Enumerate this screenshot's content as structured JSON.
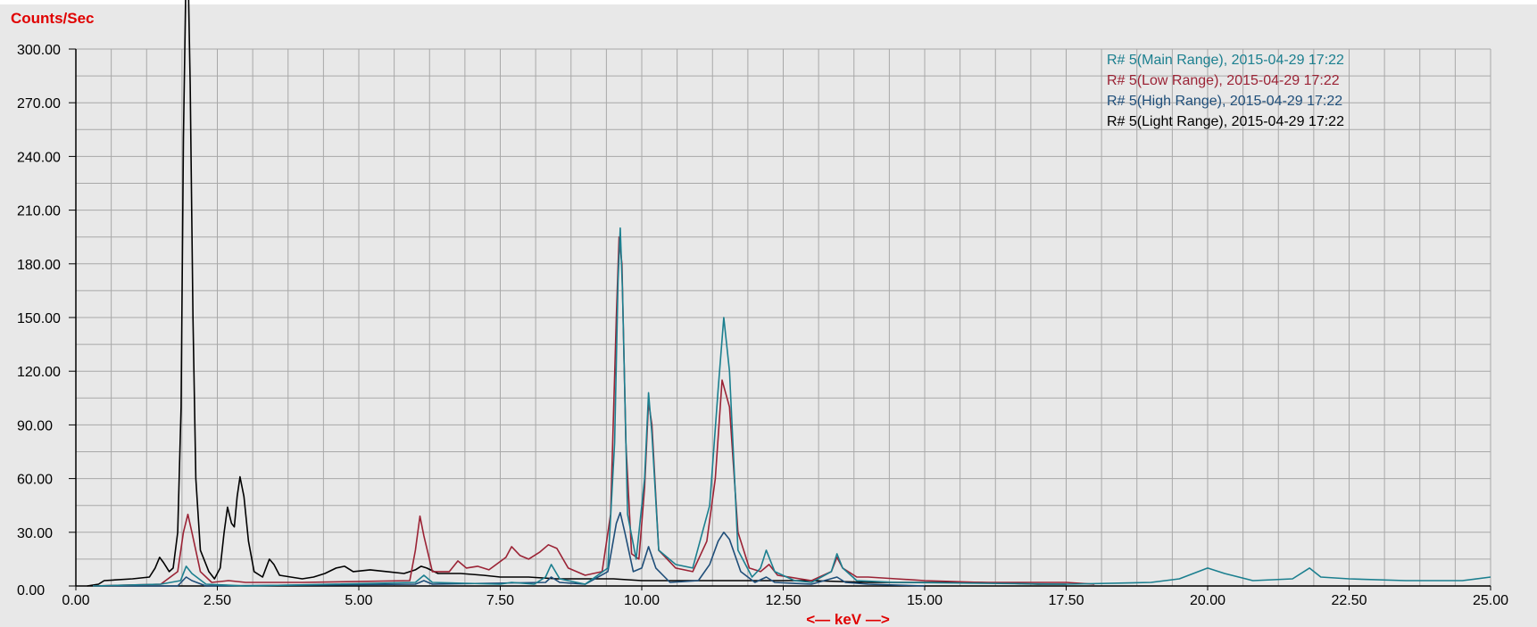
{
  "chart_data": {
    "type": "line",
    "title": "",
    "ylabel": "Counts/Sec",
    "xlabel": "<— keV —>",
    "xlim": [
      0,
      25
    ],
    "ylim": [
      0,
      300
    ],
    "grid": true,
    "legend_position": "top-right",
    "x_ticks": [
      "0.00",
      "2.50",
      "5.00",
      "7.50",
      "10.00",
      "12.50",
      "15.00",
      "17.50",
      "20.00",
      "22.50",
      "25.00"
    ],
    "y_ticks": [
      "0.00",
      "30.00",
      "60.00",
      "90.00",
      "120.00",
      "150.00",
      "180.00",
      "210.00",
      "240.00",
      "270.00",
      "300.00"
    ],
    "series": [
      {
        "name": "R# 5(Main Range), 2015-04-29 17:22",
        "color": "#1b7f8f",
        "points": [
          [
            0.3,
            0
          ],
          [
            1.5,
            1
          ],
          [
            1.85,
            3
          ],
          [
            1.95,
            11
          ],
          [
            2.05,
            7
          ],
          [
            2.3,
            1
          ],
          [
            3.0,
            0
          ],
          [
            6.0,
            2
          ],
          [
            6.15,
            6
          ],
          [
            6.3,
            2
          ],
          [
            7.5,
            1
          ],
          [
            7.7,
            2
          ],
          [
            8.1,
            1
          ],
          [
            8.3,
            5
          ],
          [
            8.4,
            12
          ],
          [
            8.55,
            4
          ],
          [
            9.0,
            1
          ],
          [
            9.4,
            10
          ],
          [
            9.52,
            80
          ],
          [
            9.58,
            170
          ],
          [
            9.62,
            200
          ],
          [
            9.66,
            165
          ],
          [
            9.75,
            40
          ],
          [
            9.9,
            15
          ],
          [
            10.05,
            60
          ],
          [
            10.12,
            108
          ],
          [
            10.18,
            85
          ],
          [
            10.3,
            20
          ],
          [
            10.6,
            12
          ],
          [
            10.9,
            10
          ],
          [
            11.2,
            45
          ],
          [
            11.35,
            110
          ],
          [
            11.45,
            150
          ],
          [
            11.55,
            120
          ],
          [
            11.7,
            20
          ],
          [
            11.95,
            5
          ],
          [
            12.1,
            10
          ],
          [
            12.2,
            20
          ],
          [
            12.35,
            8
          ],
          [
            12.7,
            3
          ],
          [
            13.0,
            2
          ],
          [
            13.35,
            8
          ],
          [
            13.45,
            18
          ],
          [
            13.55,
            10
          ],
          [
            13.8,
            3
          ],
          [
            14.5,
            2
          ],
          [
            17.5,
            1
          ],
          [
            19.0,
            2
          ],
          [
            19.5,
            4
          ],
          [
            20.0,
            10
          ],
          [
            20.3,
            7
          ],
          [
            20.8,
            3
          ],
          [
            21.5,
            4
          ],
          [
            21.8,
            10
          ],
          [
            22.0,
            5
          ],
          [
            22.5,
            4
          ],
          [
            23.5,
            3
          ],
          [
            24.5,
            3
          ],
          [
            25.0,
            5
          ]
        ]
      },
      {
        "name": "R# 5(Low Range), 2015-04-29 17:22",
        "color": "#9b2335",
        "points": [
          [
            0.3,
            0
          ],
          [
            1.5,
            1
          ],
          [
            1.8,
            8
          ],
          [
            1.9,
            30
          ],
          [
            1.98,
            40
          ],
          [
            2.05,
            30
          ],
          [
            2.2,
            8
          ],
          [
            2.4,
            2
          ],
          [
            2.7,
            3
          ],
          [
            3.0,
            2
          ],
          [
            4.0,
            2
          ],
          [
            5.9,
            3
          ],
          [
            6.0,
            20
          ],
          [
            6.08,
            39
          ],
          [
            6.15,
            28
          ],
          [
            6.3,
            8
          ],
          [
            6.6,
            8
          ],
          [
            6.75,
            14
          ],
          [
            6.9,
            10
          ],
          [
            7.1,
            11
          ],
          [
            7.3,
            9
          ],
          [
            7.6,
            16
          ],
          [
            7.7,
            22
          ],
          [
            7.85,
            17
          ],
          [
            8.0,
            15
          ],
          [
            8.2,
            19
          ],
          [
            8.35,
            23
          ],
          [
            8.5,
            21
          ],
          [
            8.7,
            10
          ],
          [
            9.0,
            6
          ],
          [
            9.3,
            8
          ],
          [
            9.45,
            40
          ],
          [
            9.55,
            150
          ],
          [
            9.6,
            195
          ],
          [
            9.65,
            180
          ],
          [
            9.72,
            80
          ],
          [
            9.82,
            18
          ],
          [
            9.95,
            15
          ],
          [
            10.05,
            55
          ],
          [
            10.12,
            103
          ],
          [
            10.18,
            90
          ],
          [
            10.3,
            20
          ],
          [
            10.6,
            10
          ],
          [
            10.9,
            8
          ],
          [
            11.15,
            25
          ],
          [
            11.3,
            60
          ],
          [
            11.42,
            115
          ],
          [
            11.55,
            100
          ],
          [
            11.7,
            30
          ],
          [
            11.9,
            10
          ],
          [
            12.1,
            8
          ],
          [
            12.25,
            12
          ],
          [
            12.4,
            6
          ],
          [
            12.8,
            4
          ],
          [
            13.0,
            3
          ],
          [
            13.35,
            8
          ],
          [
            13.45,
            16
          ],
          [
            13.55,
            10
          ],
          [
            13.8,
            5
          ],
          [
            14.0,
            5
          ],
          [
            14.5,
            4
          ],
          [
            15.0,
            3
          ],
          [
            16.0,
            2
          ],
          [
            17.5,
            2
          ],
          [
            18.0,
            1
          ]
        ]
      },
      {
        "name": "R# 5(High Range), 2015-04-29 17:22",
        "color": "#1f4e79",
        "points": [
          [
            0.3,
            0
          ],
          [
            1.8,
            0
          ],
          [
            1.95,
            5
          ],
          [
            2.05,
            3
          ],
          [
            2.3,
            0
          ],
          [
            6.0,
            1
          ],
          [
            6.15,
            3
          ],
          [
            6.3,
            1
          ],
          [
            8.3,
            2
          ],
          [
            8.4,
            5
          ],
          [
            8.55,
            2
          ],
          [
            9.0,
            1
          ],
          [
            9.4,
            8
          ],
          [
            9.55,
            35
          ],
          [
            9.62,
            41
          ],
          [
            9.7,
            30
          ],
          [
            9.85,
            8
          ],
          [
            10.0,
            10
          ],
          [
            10.12,
            22
          ],
          [
            10.25,
            10
          ],
          [
            10.5,
            2
          ],
          [
            11.0,
            3
          ],
          [
            11.2,
            12
          ],
          [
            11.35,
            25
          ],
          [
            11.45,
            30
          ],
          [
            11.55,
            26
          ],
          [
            11.75,
            8
          ],
          [
            12.0,
            2
          ],
          [
            12.2,
            5
          ],
          [
            12.35,
            2
          ],
          [
            13.0,
            1
          ],
          [
            13.45,
            5
          ],
          [
            13.6,
            2
          ],
          [
            14.0,
            1
          ],
          [
            15.0,
            0
          ]
        ]
      },
      {
        "name": "R# 5(Light Range), 2015-04-29 17:22",
        "color": "#000000",
        "points": [
          [
            0.2,
            0
          ],
          [
            0.4,
            1
          ],
          [
            0.5,
            3
          ],
          [
            1.0,
            4
          ],
          [
            1.3,
            5
          ],
          [
            1.4,
            10
          ],
          [
            1.48,
            16
          ],
          [
            1.55,
            13
          ],
          [
            1.65,
            8
          ],
          [
            1.72,
            10
          ],
          [
            1.8,
            30
          ],
          [
            1.86,
            100
          ],
          [
            1.9,
            250
          ],
          [
            1.94,
            330
          ],
          [
            1.98,
            350
          ],
          [
            2.02,
            280
          ],
          [
            2.07,
            150
          ],
          [
            2.12,
            60
          ],
          [
            2.2,
            20
          ],
          [
            2.35,
            8
          ],
          [
            2.45,
            4
          ],
          [
            2.55,
            10
          ],
          [
            2.62,
            30
          ],
          [
            2.68,
            44
          ],
          [
            2.75,
            35
          ],
          [
            2.8,
            33
          ],
          [
            2.85,
            50
          ],
          [
            2.9,
            61
          ],
          [
            2.97,
            50
          ],
          [
            3.05,
            25
          ],
          [
            3.15,
            8
          ],
          [
            3.3,
            5
          ],
          [
            3.42,
            15
          ],
          [
            3.5,
            12
          ],
          [
            3.6,
            6
          ],
          [
            3.8,
            5
          ],
          [
            4.0,
            4
          ],
          [
            4.2,
            5
          ],
          [
            4.4,
            7
          ],
          [
            4.6,
            10
          ],
          [
            4.75,
            11
          ],
          [
            4.9,
            8
          ],
          [
            5.2,
            9
          ],
          [
            5.5,
            8
          ],
          [
            5.8,
            7
          ],
          [
            6.0,
            9
          ],
          [
            6.1,
            11
          ],
          [
            6.2,
            10
          ],
          [
            6.4,
            7
          ],
          [
            6.8,
            7
          ],
          [
            7.2,
            6
          ],
          [
            7.5,
            5
          ],
          [
            8.0,
            5
          ],
          [
            8.5,
            4
          ],
          [
            9.0,
            4
          ],
          [
            9.5,
            4
          ],
          [
            10.0,
            3
          ],
          [
            11.0,
            3
          ],
          [
            12.0,
            3
          ],
          [
            13.0,
            3
          ],
          [
            14.0,
            2
          ],
          [
            15.0,
            2
          ],
          [
            16.0,
            2
          ],
          [
            17.0,
            1
          ],
          [
            17.5,
            1
          ]
        ]
      }
    ]
  }
}
